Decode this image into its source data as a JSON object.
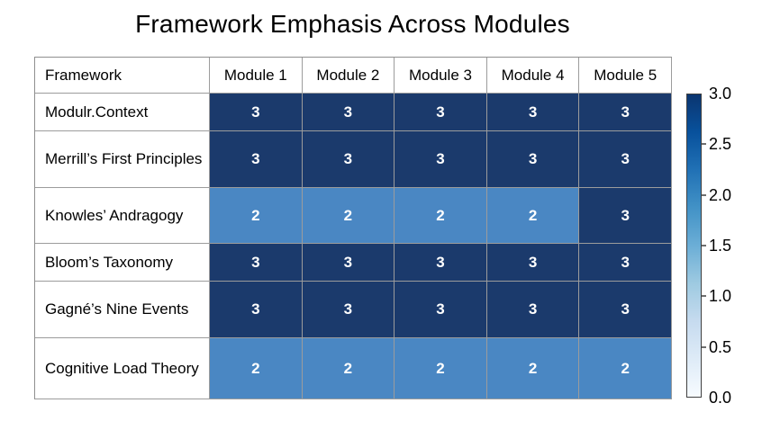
{
  "title": "Framework Emphasis Across Modules",
  "chart_data": {
    "type": "heatmap",
    "title": "Framework Emphasis Across Modules",
    "columns": [
      "Framework",
      "Module 1",
      "Module 2",
      "Module 3",
      "Module 4",
      "Module 5"
    ],
    "rows": [
      {
        "label": "Modulr.Context",
        "values": [
          3,
          3,
          3,
          3,
          3
        ]
      },
      {
        "label": "Merrill’s First Principles",
        "values": [
          3,
          3,
          3,
          3,
          3
        ]
      },
      {
        "label": "Knowles’ Andragogy",
        "values": [
          2,
          2,
          2,
          2,
          3
        ]
      },
      {
        "label": "Bloom’s Taxonomy",
        "values": [
          3,
          3,
          3,
          3,
          3
        ]
      },
      {
        "label": "Gagné’s Nine Events",
        "values": [
          3,
          3,
          3,
          3,
          3
        ]
      },
      {
        "label": "Cognitive Load Theory",
        "values": [
          2,
          2,
          2,
          2,
          2
        ]
      }
    ],
    "cell_colors": {
      "3": "#1b3a6c",
      "2": "#4a87c3"
    },
    "value_text_color": "#ffffff",
    "colorbar": {
      "min": 0.0,
      "max": 3.0,
      "colormap": "Blues",
      "tick_labels": [
        "3.0",
        "2.5",
        "2.0",
        "1.5",
        "1.0",
        "0.5",
        "0.0"
      ]
    },
    "legend_position": "right",
    "grid": true
  }
}
